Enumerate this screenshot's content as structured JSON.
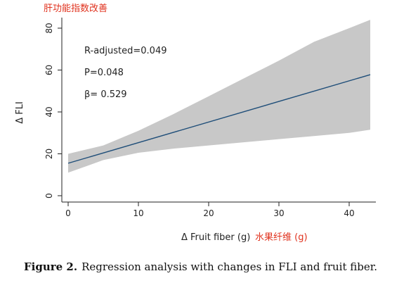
{
  "chart_data": {
    "type": "line",
    "title_annotation": "肝功能指数改善",
    "ylabel": "Δ FLI",
    "xlabel": "Δ Fruit fiber (g)",
    "xlabel_annotation": "水果纤维 (g)",
    "xlim": [
      0,
      43
    ],
    "ylim": [
      0,
      80
    ],
    "x_ticks": [
      "0",
      "10",
      "20",
      "30",
      "40"
    ],
    "y_ticks": [
      "0",
      "20",
      "40",
      "60",
      "80"
    ],
    "series": [
      {
        "x": [
          0,
          43
        ],
        "y": [
          15.5,
          57.8
        ]
      }
    ],
    "confidence_band": {
      "x": [
        0,
        5,
        10,
        15,
        20,
        25,
        30,
        35,
        40,
        43
      ],
      "lower": [
        11.0,
        17.0,
        20.5,
        22.5,
        24.0,
        25.5,
        27.0,
        28.5,
        30.0,
        31.5
      ],
      "upper": [
        20.0,
        24.0,
        31.0,
        39.0,
        47.5,
        56.0,
        64.5,
        73.5,
        80.0,
        84.0
      ]
    },
    "annotations": [
      "R-adjusted=0.049",
      "P=0.048",
      "β= 0.529"
    ],
    "colors": {
      "line": "#1f4e79",
      "band": "#c8c8c8",
      "accent": "#e0321e"
    },
    "grid": false
  },
  "caption": {
    "label": "Figure 2.",
    "text": "Regression analysis with changes in FLI and fruit fiber."
  }
}
